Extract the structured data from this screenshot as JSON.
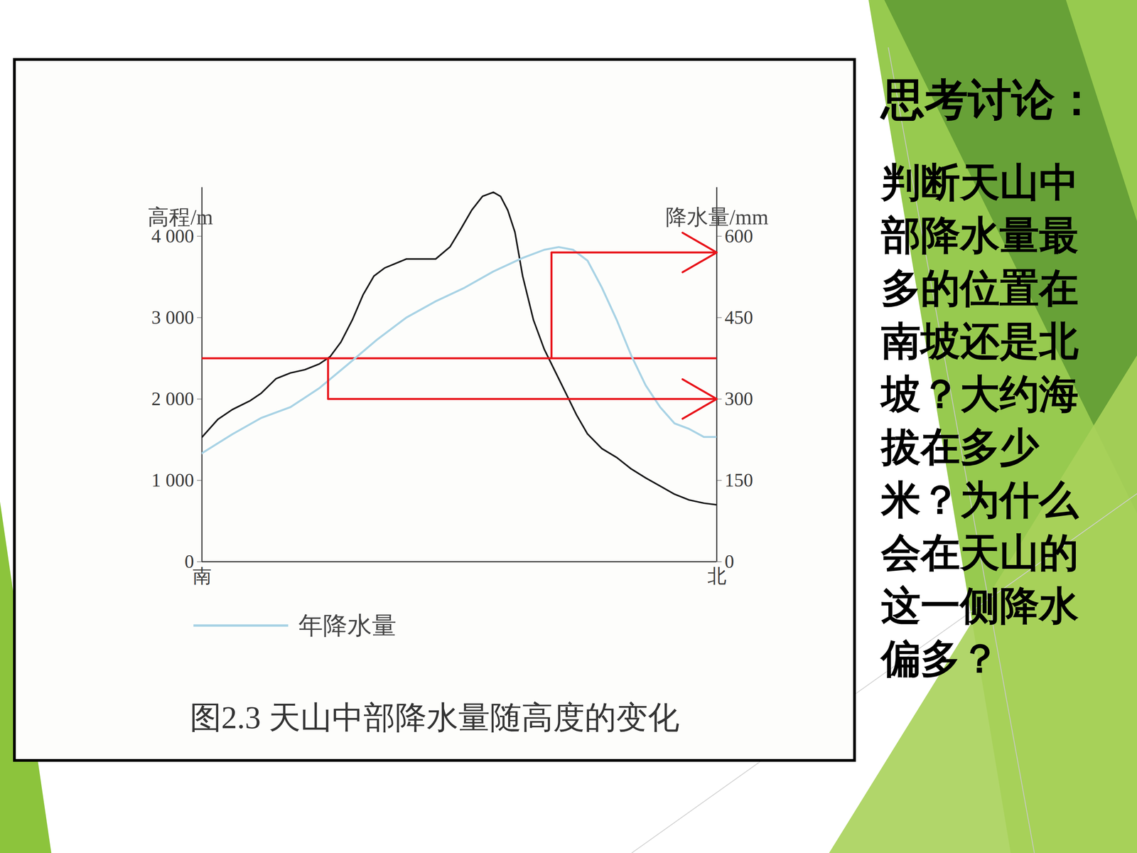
{
  "chart_data": {
    "type": "line",
    "title": "图2.3 天山中部降水量随高度的变化",
    "xlim": [
      0,
      100
    ],
    "xticks": [
      {
        "value": 0,
        "label": "南"
      },
      {
        "value": 100,
        "label": "北"
      }
    ],
    "ylabel": "高程/m",
    "ylim": [
      0,
      4600
    ],
    "yticks": [
      0,
      {
        "value": 1000,
        "label": "1 000"
      },
      {
        "value": 2000,
        "label": "2 000"
      },
      {
        "value": 3000,
        "label": "3 000"
      },
      {
        "value": 4000,
        "label": "4 000"
      }
    ],
    "y2label": "降水量/mm",
    "y2lim": [
      0,
      690
    ],
    "y2ticks": [
      0,
      150,
      300,
      450,
      600
    ],
    "legend": "bottom-left",
    "series": [
      {
        "color": "#1a1a1a",
        "x": [
          0,
          3.1,
          5.9,
          9.4,
          11.5,
          14.4,
          17.2,
          20.0,
          22.8,
          24.9,
          27.0,
          29.2,
          31.3,
          33.4,
          35.5,
          39.7,
          45.4,
          48.2,
          50.3,
          52.4,
          54.5,
          56.6,
          58.0,
          59.4,
          60.8,
          62.3,
          64.4,
          66.5,
          68.6,
          70.7,
          72.8,
          74.9,
          77.7,
          80.6,
          83.4,
          86.2,
          89.0,
          91.8,
          94.6,
          97.5,
          100
        ],
        "values": [
          1530,
          1750,
          1870,
          1980,
          2070,
          2250,
          2320,
          2360,
          2430,
          2520,
          2700,
          2970,
          3280,
          3510,
          3610,
          3720,
          3720,
          3870,
          4090,
          4320,
          4490,
          4540,
          4490,
          4320,
          4050,
          3510,
          2970,
          2610,
          2340,
          2070,
          1800,
          1570,
          1390,
          1280,
          1140,
          1030,
          930,
          830,
          760,
          720,
          700
        ]
      },
      {
        "name": "年降水量",
        "color": "#a9d3e5",
        "axis": "y2",
        "x": [
          0,
          5.9,
          11.5,
          17.2,
          22.8,
          28.5,
          34.1,
          39.7,
          45.4,
          51.0,
          56.6,
          62.3,
          66.5,
          69.3,
          72.1,
          74.9,
          77.7,
          80.6,
          83.4,
          86.2,
          89.0,
          91.8,
          94.6,
          97.5,
          100
        ],
        "values": [
          200,
          235,
          265,
          285,
          320,
          365,
          410,
          450,
          480,
          505,
          535,
          560,
          575,
          580,
          575,
          555,
          505,
          445,
          380,
          325,
          285,
          255,
          245,
          230,
          230
        ]
      }
    ],
    "annotations": {
      "color": "#e8141a",
      "elevation": 2500,
      "readings": [
        {
          "x": 24.5,
          "precipitation": 300
        },
        {
          "x": 67.9,
          "precipitation": 570
        }
      ]
    }
  },
  "side_text": {
    "heading": "思考讨论：",
    "question": "判断天山中部降水量最多的位置在南坡还是北坡？大约海拔在多少米？为什么会在天山的这一侧降水偏多？"
  }
}
